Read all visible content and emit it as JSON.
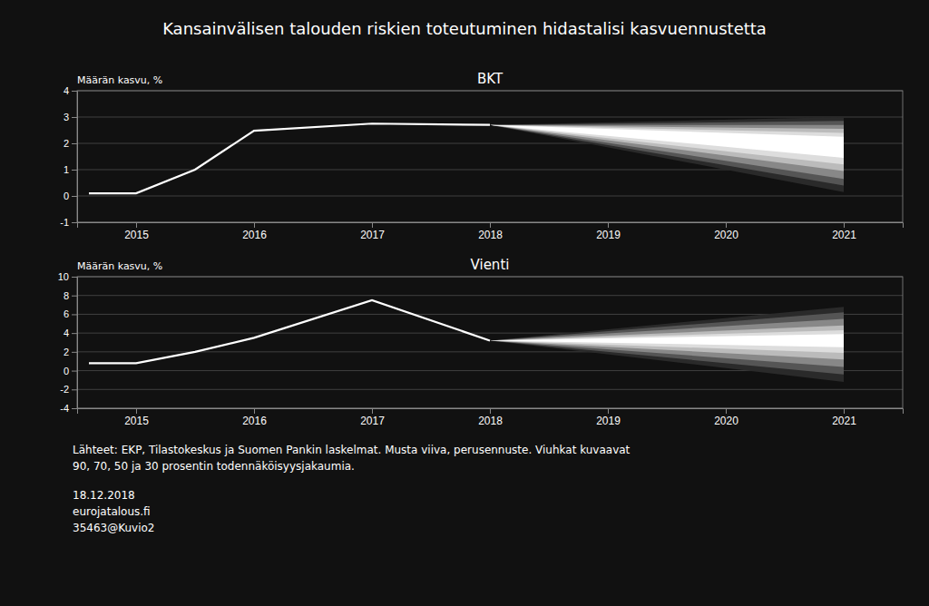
{
  "title": "Kansainvälisen talouden riskien toteutuminen hidastalisi kasvuennustetta",
  "annotations": [
    "Lähteet: EKP, Tilastokeskus ja Suomen Pankin laskelmat. Musta viiva, perusennuste. Viuhkat kuvaavat",
    "90, 70, 50 ja 30 prosentin todennäköisyysjakaumia.",
    "18.12.2018",
    "eurojatalous.fi",
    "35463@Kuvio2"
  ],
  "chart_data": [
    {
      "type": "fan",
      "title": "BKT",
      "ylabel": "Määrän kasvu, %",
      "grid": true,
      "xlim": [
        2014.5,
        2021.5
      ],
      "xticks": [
        2015,
        2016,
        2017,
        2018,
        2019,
        2020,
        2021
      ],
      "ylim": [
        -1,
        4
      ],
      "yticks": [
        -1,
        0,
        1,
        2,
        3,
        4
      ],
      "series": [
        {
          "type": "area",
          "color": "#2a2a2a",
          "x": [
            2018.0,
            2021.0
          ],
          "values": [
            2.7,
            3.0
          ],
          "lower": [
            2.7,
            0.15
          ]
        },
        {
          "type": "area",
          "color": "#555555",
          "x": [
            2018.0,
            2021.0
          ],
          "values": [
            2.7,
            2.85
          ],
          "lower": [
            2.7,
            0.4
          ]
        },
        {
          "type": "area",
          "color": "#888888",
          "x": [
            2018.0,
            2021.0
          ],
          "values": [
            2.7,
            2.7
          ],
          "lower": [
            2.7,
            0.65
          ]
        },
        {
          "type": "area",
          "color": "#bbbbbb",
          "x": [
            2018.0,
            2021.0
          ],
          "values": [
            2.7,
            2.55
          ],
          "lower": [
            2.7,
            0.95
          ]
        },
        {
          "type": "area",
          "color": "#dddddd",
          "x": [
            2018.0,
            2021.0
          ],
          "values": [
            2.7,
            2.4
          ],
          "lower": [
            2.7,
            1.2
          ]
        },
        {
          "type": "area",
          "color": "#ffffff",
          "x": [
            2018.0,
            2021.0
          ],
          "values": [
            2.7,
            2.25
          ],
          "lower": [
            2.7,
            1.45
          ]
        },
        {
          "type": "line",
          "color": "#ffffff",
          "x": [
            2014.6,
            2015.0,
            2015.5,
            2016.0,
            2017.0,
            2018.0
          ],
          "values": [
            0.1,
            0.1,
            1.0,
            2.48,
            2.75,
            2.7
          ]
        }
      ]
    },
    {
      "type": "fan",
      "title": "Vienti",
      "ylabel": "Määrän kasvu, %",
      "grid": true,
      "xlim": [
        2014.5,
        2021.5
      ],
      "xticks": [
        2015,
        2016,
        2017,
        2018,
        2019,
        2020,
        2021
      ],
      "ylim": [
        -4,
        10
      ],
      "yticks": [
        -4,
        -2,
        0,
        2,
        4,
        6,
        8,
        10
      ],
      "series": [
        {
          "type": "area",
          "color": "#2a2a2a",
          "x": [
            2018.0,
            2021.0
          ],
          "values": [
            3.2,
            6.8
          ],
          "lower": [
            3.2,
            -1.2
          ]
        },
        {
          "type": "area",
          "color": "#555555",
          "x": [
            2018.0,
            2021.0
          ],
          "values": [
            3.2,
            6.2
          ],
          "lower": [
            3.2,
            -0.4
          ]
        },
        {
          "type": "area",
          "color": "#888888",
          "x": [
            2018.0,
            2021.0
          ],
          "values": [
            3.2,
            5.5
          ],
          "lower": [
            3.2,
            0.4
          ]
        },
        {
          "type": "area",
          "color": "#bbbbbb",
          "x": [
            2018.0,
            2021.0
          ],
          "values": [
            3.2,
            4.8
          ],
          "lower": [
            3.2,
            1.2
          ]
        },
        {
          "type": "area",
          "color": "#dddddd",
          "x": [
            2018.0,
            2021.0
          ],
          "values": [
            3.2,
            4.3
          ],
          "lower": [
            3.2,
            1.9
          ]
        },
        {
          "type": "area",
          "color": "#ffffff",
          "x": [
            2018.0,
            2021.0
          ],
          "values": [
            3.2,
            3.9
          ],
          "lower": [
            3.2,
            2.5
          ]
        },
        {
          "type": "line",
          "color": "#ffffff",
          "x": [
            2014.6,
            2015.0,
            2015.5,
            2016.0,
            2017.0,
            2018.0
          ],
          "values": [
            0.8,
            0.8,
            2.0,
            3.5,
            7.5,
            3.2
          ]
        }
      ]
    }
  ]
}
